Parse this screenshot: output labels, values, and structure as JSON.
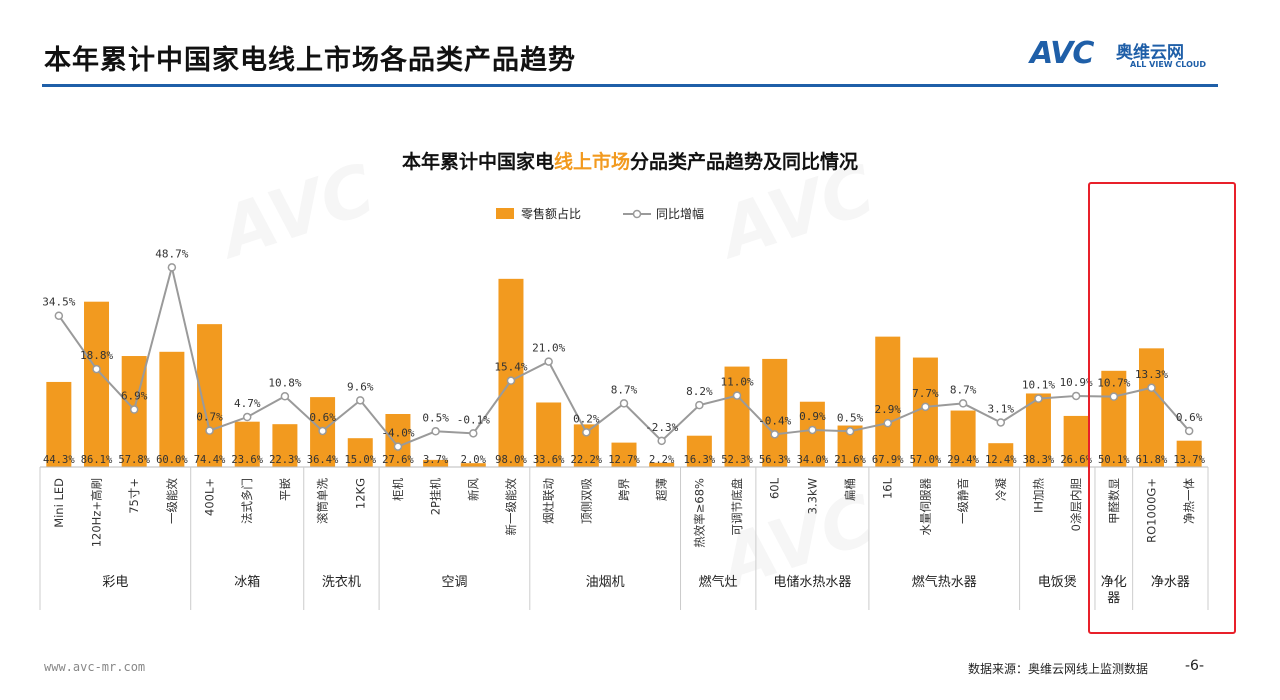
{
  "header": {
    "title": "本年累计中国家电线上市场各品类产品趋势",
    "logo_text": "AVC",
    "logo_cn": "奥维云网",
    "logo_en": "ALL VIEW CLOUD"
  },
  "footer": {
    "url": "www.avc-mr.com",
    "source": "数据来源：奥维云网线上监测数据",
    "page_number": "-6-"
  },
  "colors": {
    "bar": "#f29a1f",
    "line": "#9a9a9a",
    "title_rule": "#1f5fa8",
    "highlight_box": "#e8202a",
    "title_accent": "#f29a1f"
  },
  "chart_data": {
    "type": "bar",
    "title": "本年累计中国家电线上市场分品类产品趋势及同比情况",
    "title_parts": [
      "本年累计中国家电",
      "线上市场",
      "分品类产品趋势及同比情况"
    ],
    "legend": [
      "零售额占比",
      "同比增幅"
    ],
    "legend_position": "top",
    "categories": [
      "Mini LED",
      "120Hz+高刷",
      "75寸+",
      "一级能效",
      "400L+",
      "法式多门",
      "平嵌",
      "滚筒单洗",
      "12KG",
      "柜机",
      "2P挂机",
      "新风",
      "新一级能效",
      "烟灶联动",
      "顶侧双吸",
      "跨界",
      "超薄",
      "热效率≥68%",
      "可调节底盘",
      "60L",
      "3.3kW",
      "扁桶",
      "16L",
      "水量伺服器",
      "一级静音",
      "冷凝",
      "IH加热",
      "0涂层内胆",
      "甲醛数显",
      "RO1000G+",
      "净热一体"
    ],
    "groups": [
      {
        "name": "彩电",
        "count": 4
      },
      {
        "name": "冰箱",
        "count": 3
      },
      {
        "name": "洗衣机",
        "count": 2
      },
      {
        "name": "空调",
        "count": 4
      },
      {
        "name": "油烟机",
        "count": 4
      },
      {
        "name": "燃气灶",
        "count": 2
      },
      {
        "name": "电储水热水器",
        "count": 3
      },
      {
        "name": "燃气热水器",
        "count": 4
      },
      {
        "name": "电饭煲",
        "count": 2
      },
      {
        "name": "净化器",
        "count": 1
      },
      {
        "name": "净水器",
        "count": 2
      }
    ],
    "series": [
      {
        "name": "零售额占比",
        "type": "bar",
        "values": [
          44.3,
          86.1,
          57.8,
          60.0,
          74.4,
          23.6,
          22.3,
          36.4,
          15.0,
          27.6,
          3.7,
          2.0,
          98.0,
          33.6,
          22.2,
          12.7,
          2.2,
          16.3,
          52.3,
          56.3,
          34.0,
          21.6,
          67.9,
          57.0,
          29.4,
          12.4,
          38.3,
          26.6,
          50.1,
          61.8,
          13.7
        ],
        "labels": [
          "44.3%",
          "86.1%",
          "57.8%",
          "60.0%",
          "74.4%",
          "23.6%",
          "22.3%",
          "36.4%",
          "15.0%",
          "27.6%",
          "3.7%",
          "2.0%",
          "98.0%",
          "33.6%",
          "22.2%",
          "12.7%",
          "2.2%",
          "16.3%",
          "52.3%",
          "56.3%",
          "34.0%",
          "21.6%",
          "67.9%",
          "57.0%",
          "29.4%",
          "12.4%",
          "38.3%",
          "26.6%",
          "50.1%",
          "61.8%",
          "13.7%"
        ]
      },
      {
        "name": "同比增幅",
        "type": "line",
        "values": [
          34.5,
          18.8,
          6.9,
          48.7,
          0.7,
          4.7,
          10.8,
          0.6,
          9.6,
          -4.0,
          0.5,
          -0.1,
          15.4,
          21.0,
          0.2,
          8.7,
          -2.3,
          8.2,
          11.0,
          -0.4,
          0.9,
          0.5,
          2.9,
          7.7,
          8.7,
          3.1,
          10.1,
          10.9,
          10.7,
          13.3,
          0.6
        ],
        "labels": [
          "34.5%",
          "18.8%",
          "6.9%",
          "48.7%",
          "0.7%",
          "4.7%",
          "10.8%",
          "0.6%",
          "9.6%",
          "-4.0%",
          "0.5%",
          "-0.1%",
          "15.4%",
          "21.0%",
          "0.2%",
          "8.7%",
          "-2.3%",
          "8.2%",
          "11.0%",
          "-0.4%",
          "0.9%",
          "0.5%",
          "2.9%",
          "7.7%",
          "8.7%",
          "3.1%",
          "10.1%",
          "10.9%",
          "10.7%",
          "13.3%",
          "0.6%"
        ]
      }
    ],
    "ylim_bar": [
      0,
      100
    ],
    "ylim_line": [
      -5,
      50
    ],
    "grid": false
  }
}
